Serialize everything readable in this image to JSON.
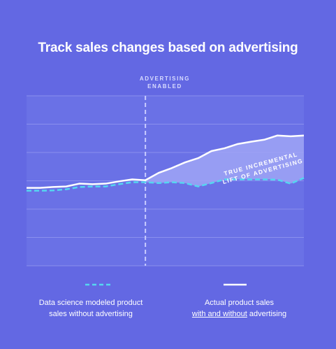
{
  "title": "Track sales changes based on advertising",
  "annotations": {
    "vline_label_line1": "ADVERTISING",
    "vline_label_line2": "ENABLED",
    "lift_label_line1": "TRUE INCREMENTAL",
    "lift_label_line2": "LIFT OF ADVERTISING"
  },
  "legend": {
    "modeled_line1": "Data science modeled product",
    "modeled_line2": "sales without advertising",
    "actual_line1": "Actual product sales",
    "actual_line2_underlined": "with and without",
    "actual_line2_rest": " advertising"
  },
  "colors": {
    "background": "#6368e3",
    "plot_area": "#6a71e6",
    "gridline": "#8a8fee",
    "lift_fill": "#9fa4f4",
    "actual_line": "#ffffff",
    "modeled_line": "#55d6f0",
    "vline": "#c9ccff"
  },
  "chart_data": {
    "type": "line",
    "title": "Track sales changes based on advertising",
    "xlabel": "",
    "ylabel": "",
    "grid": true,
    "legend_position": "bottom",
    "xlim": [
      0,
      21
    ],
    "ylim": [
      0,
      6
    ],
    "advertising_enabled_at": 9,
    "series": [
      {
        "name": "Actual product sales with and without advertising",
        "style": "solid",
        "x": [
          0,
          1,
          2,
          3,
          4,
          5,
          6,
          7,
          8,
          9,
          10,
          11,
          12,
          13,
          14,
          15,
          16,
          17,
          18,
          19,
          20,
          21
        ],
        "values": [
          2.75,
          2.75,
          2.78,
          2.8,
          2.9,
          2.88,
          2.9,
          2.98,
          3.05,
          3.02,
          3.28,
          3.45,
          3.65,
          3.8,
          4.05,
          4.15,
          4.3,
          4.38,
          4.45,
          4.6,
          4.57,
          4.6
        ]
      },
      {
        "name": "Data science modeled product sales without advertising",
        "style": "dashed",
        "x": [
          0,
          1,
          2,
          3,
          4,
          5,
          6,
          7,
          8,
          9,
          10,
          11,
          12,
          13,
          14,
          15,
          16,
          17,
          18,
          19,
          20,
          21
        ],
        "values": [
          2.65,
          2.65,
          2.66,
          2.7,
          2.78,
          2.8,
          2.8,
          2.88,
          2.95,
          2.95,
          2.92,
          2.95,
          2.92,
          2.8,
          2.92,
          3.05,
          3.05,
          3.05,
          3.05,
          3.04,
          2.9,
          3.1
        ]
      }
    ]
  }
}
